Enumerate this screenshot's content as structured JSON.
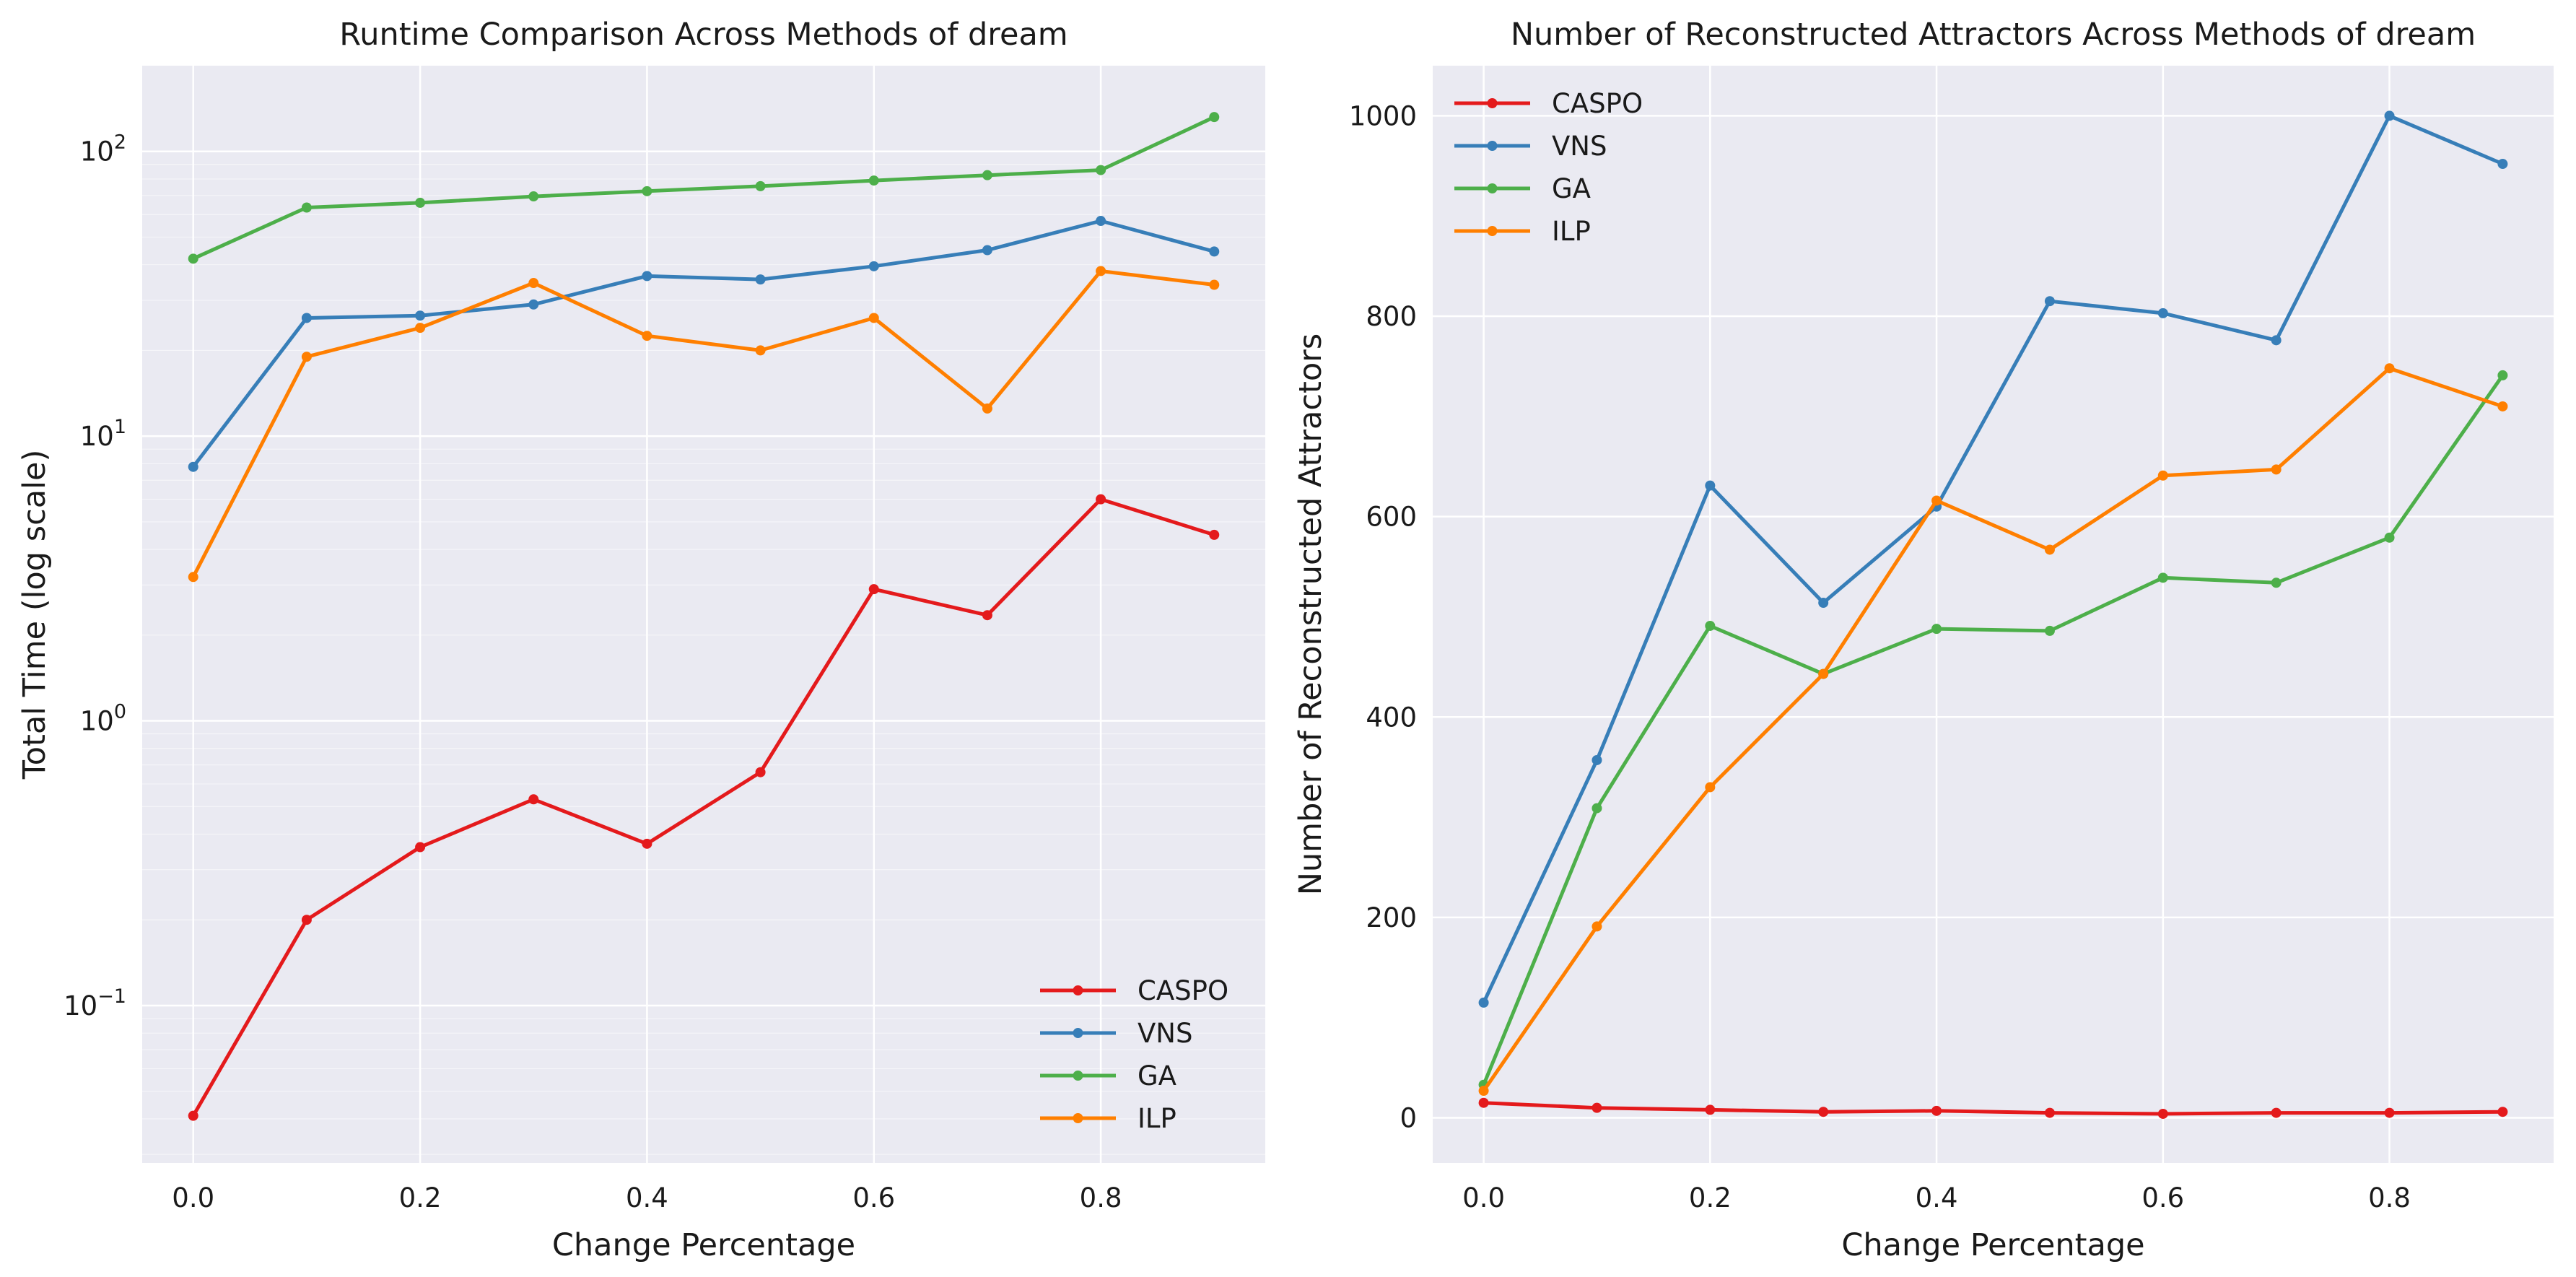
{
  "chart_data": [
    {
      "type": "line",
      "title": "Runtime Comparison Across Methods of dream",
      "xlabel": "Change Percentage",
      "ylabel": "Total Time (log scale)",
      "yscale": "log",
      "x": [
        0.0,
        0.1,
        0.2,
        0.3,
        0.4,
        0.5,
        0.6,
        0.7,
        0.8,
        0.9
      ],
      "xlim": [
        -0.045,
        0.945
      ],
      "ylim": [
        0.028,
        200
      ],
      "xticks": [
        0.0,
        0.2,
        0.4,
        0.6,
        0.8
      ],
      "xtick_labels": [
        "0.0",
        "0.2",
        "0.4",
        "0.6",
        "0.8"
      ],
      "yticks": [
        0.1,
        1,
        10,
        100
      ],
      "ytick_labels": [
        {
          "base": "10",
          "exp": "−1"
        },
        {
          "base": "10",
          "exp": "0"
        },
        {
          "base": "10",
          "exp": "1"
        },
        {
          "base": "10",
          "exp": "2"
        }
      ],
      "grid": true,
      "legend_position": "lower-right",
      "series": [
        {
          "name": "CASPO",
          "color": "#e41a1c",
          "values": [
            0.041,
            0.2,
            0.36,
            0.53,
            0.37,
            0.66,
            2.9,
            2.35,
            6.0,
            4.5
          ]
        },
        {
          "name": "VNS",
          "color": "#377eb8",
          "values": [
            7.8,
            26.0,
            26.5,
            29.0,
            36.5,
            35.5,
            39.5,
            45.0,
            57.0,
            44.5
          ]
        },
        {
          "name": "GA",
          "color": "#4daf4a",
          "values": [
            42.0,
            63.5,
            66.0,
            69.5,
            72.5,
            75.5,
            79.0,
            82.5,
            86.0,
            132.0
          ]
        },
        {
          "name": "ILP",
          "color": "#ff7f00",
          "values": [
            3.2,
            19.0,
            24.0,
            34.5,
            22.5,
            20.0,
            26.0,
            12.5,
            38.0,
            34.0
          ]
        }
      ]
    },
    {
      "type": "line",
      "title": "Number of Reconstructed Attractors Across Methods of dream",
      "xlabel": "Change Percentage",
      "ylabel": "Number of Reconstructed Attractors",
      "yscale": "linear",
      "x": [
        0.0,
        0.1,
        0.2,
        0.3,
        0.4,
        0.5,
        0.6,
        0.7,
        0.8,
        0.9
      ],
      "xlim": [
        -0.045,
        0.945
      ],
      "ylim": [
        -45,
        1050
      ],
      "xticks": [
        0.0,
        0.2,
        0.4,
        0.6,
        0.8
      ],
      "xtick_labels": [
        "0.0",
        "0.2",
        "0.4",
        "0.6",
        "0.8"
      ],
      "yticks": [
        0,
        200,
        400,
        600,
        800,
        1000
      ],
      "ytick_labels": [
        "0",
        "200",
        "400",
        "600",
        "800",
        "1000"
      ],
      "grid": true,
      "legend_position": "upper-left",
      "series": [
        {
          "name": "CASPO",
          "color": "#e41a1c",
          "values": [
            15,
            10,
            8,
            6,
            7,
            5,
            4,
            5,
            5,
            6
          ]
        },
        {
          "name": "VNS",
          "color": "#377eb8",
          "values": [
            115,
            357,
            631,
            514,
            610,
            815,
            803,
            776,
            1000,
            952
          ]
        },
        {
          "name": "GA",
          "color": "#4daf4a",
          "values": [
            33,
            309,
            491,
            443,
            488,
            486,
            539,
            534,
            579,
            741
          ]
        },
        {
          "name": "ILP",
          "color": "#ff7f00",
          "values": [
            27,
            191,
            330,
            443,
            616,
            567,
            641,
            647,
            748,
            710
          ]
        }
      ]
    }
  ]
}
